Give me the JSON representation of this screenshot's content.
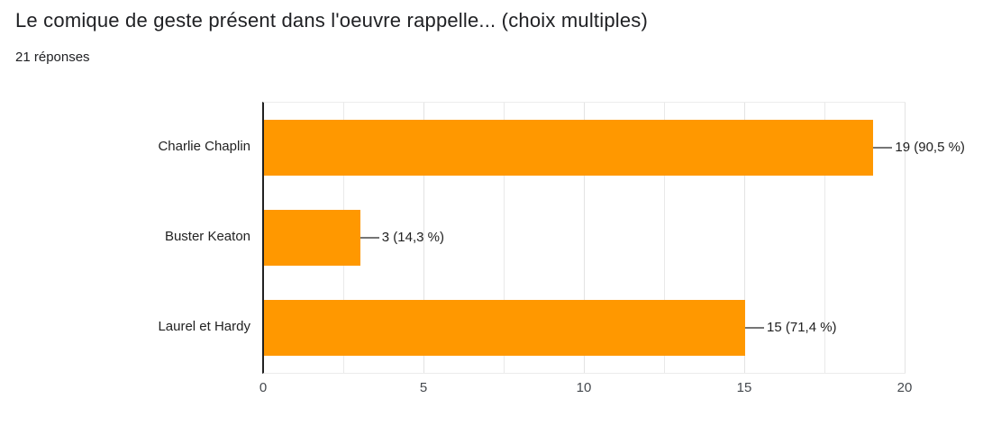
{
  "chart_data": {
    "type": "bar",
    "orientation": "horizontal",
    "title": "Le comique de geste présent dans l'oeuvre rappelle... (choix multiples)",
    "subtitle": "21 réponses",
    "categories": [
      "Charlie Chaplin",
      "Buster Keaton",
      "Laurel et Hardy"
    ],
    "values": [
      19,
      3,
      15
    ],
    "percentages": [
      90.5,
      14.3,
      71.4
    ],
    "value_labels": [
      "19 (90,5 %)",
      "3 (14,3 %)",
      "15 (71,4 %)"
    ],
    "xlabel": "",
    "ylabel": "",
    "xlim": [
      0,
      20
    ],
    "x_ticks": [
      "0",
      "5",
      "10",
      "15",
      "20"
    ],
    "x_tick_values": [
      0,
      5,
      10,
      15,
      20
    ],
    "minor_gridline_step": 2.5,
    "grid": true,
    "legend": "none",
    "bar_color": "#FF9800",
    "axis_color": "#212121",
    "gridline_color": "#e9e9e9",
    "connector_color": "#757575"
  }
}
